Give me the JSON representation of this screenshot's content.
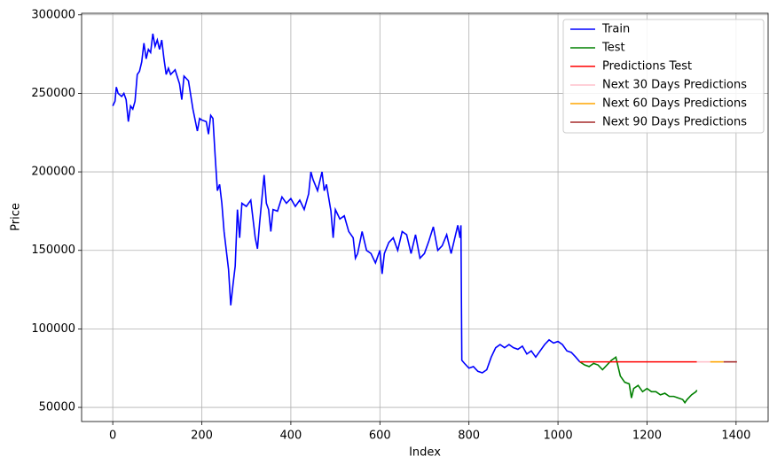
{
  "chart_data": {
    "type": "line",
    "x_label": "Index",
    "y_label": "Price",
    "xlim": [
      -70,
      1472
    ],
    "ylim": [
      41000,
      301000
    ],
    "xticks": [
      0,
      200,
      400,
      600,
      800,
      1000,
      1200,
      1400
    ],
    "yticks": [
      50000,
      100000,
      150000,
      200000,
      250000,
      300000
    ],
    "grid": true,
    "legend": "upper right",
    "series": [
      {
        "name": "Train",
        "color": "#0000ff",
        "x": [
          0,
          5,
          8,
          12,
          20,
          25,
          30,
          35,
          40,
          45,
          50,
          55,
          60,
          65,
          70,
          75,
          80,
          85,
          90,
          95,
          100,
          105,
          110,
          115,
          120,
          125,
          130,
          140,
          150,
          155,
          160,
          170,
          180,
          190,
          195,
          200,
          210,
          215,
          220,
          225,
          230,
          235,
          240,
          245,
          250,
          255,
          260,
          265,
          270,
          275,
          280,
          285,
          290,
          300,
          310,
          320,
          325,
          330,
          340,
          345,
          350,
          355,
          360,
          370,
          380,
          390,
          400,
          410,
          420,
          430,
          440,
          445,
          450,
          460,
          470,
          475,
          480,
          490,
          495,
          500,
          510,
          520,
          530,
          540,
          545,
          550,
          560,
          570,
          580,
          590,
          600,
          605,
          610,
          620,
          630,
          640,
          650,
          660,
          670,
          680,
          690,
          700,
          710,
          720,
          730,
          740,
          750,
          760,
          770,
          775,
          780,
          782,
          784,
          790,
          800,
          810,
          820,
          830,
          840,
          850,
          860,
          870,
          880,
          890,
          900,
          910,
          920,
          930,
          940,
          950,
          960,
          970,
          980,
          990,
          1000,
          1010,
          1020,
          1030,
          1040,
          1049
        ],
        "values": [
          242000,
          245000,
          254000,
          250000,
          248000,
          250000,
          246000,
          232000,
          242000,
          240000,
          245000,
          262000,
          264000,
          270000,
          282000,
          272000,
          278000,
          276000,
          288000,
          280000,
          284000,
          278000,
          284000,
          272000,
          262000,
          266000,
          262000,
          265000,
          256000,
          246000,
          261000,
          258000,
          240000,
          226000,
          234000,
          233000,
          232000,
          224000,
          236000,
          234000,
          210000,
          188000,
          192000,
          180000,
          162000,
          150000,
          138000,
          115000,
          128000,
          140000,
          176000,
          158000,
          180000,
          178000,
          182000,
          158000,
          151000,
          168000,
          198000,
          180000,
          176000,
          162000,
          176000,
          175000,
          184000,
          180000,
          183000,
          178000,
          182000,
          176000,
          186000,
          200000,
          195000,
          188000,
          200000,
          188000,
          192000,
          175000,
          158000,
          176000,
          170000,
          172000,
          162000,
          158000,
          145000,
          148000,
          162000,
          150000,
          148000,
          142000,
          150000,
          135000,
          148000,
          155000,
          158000,
          150000,
          162000,
          160000,
          148000,
          160000,
          145000,
          148000,
          156000,
          165000,
          150000,
          153000,
          160000,
          148000,
          160000,
          166000,
          158000,
          166000,
          80000,
          78000,
          75000,
          76000,
          73000,
          72000,
          74000,
          82000,
          88000,
          90000,
          88000,
          90000,
          88000,
          87000,
          89000,
          84000,
          86000,
          82000,
          86000,
          90000,
          93000,
          91000,
          92000,
          90000,
          86000,
          85000,
          82000,
          79000
        ]
      },
      {
        "name": "Test",
        "color": "#008000",
        "x": [
          1049,
          1060,
          1070,
          1080,
          1090,
          1100,
          1110,
          1120,
          1130,
          1135,
          1140,
          1150,
          1160,
          1165,
          1170,
          1180,
          1190,
          1200,
          1210,
          1220,
          1230,
          1240,
          1250,
          1260,
          1270,
          1280,
          1285,
          1290,
          1300,
          1310,
          1312
        ],
        "values": [
          79000,
          77000,
          76000,
          78000,
          77000,
          74000,
          77000,
          80000,
          82000,
          76000,
          70000,
          66000,
          65000,
          56000,
          62000,
          64000,
          60000,
          62000,
          60000,
          60000,
          58000,
          59000,
          57000,
          57000,
          56000,
          55000,
          53000,
          55000,
          58000,
          60000,
          61000
        ]
      },
      {
        "name": "Predictions Test",
        "color": "#ff0000",
        "x": [
          1049,
          1312
        ],
        "values": [
          79000,
          79000
        ]
      },
      {
        "name": "Next 30 Days Predictions",
        "color": "#ffc0cb",
        "x": [
          1312,
          1342
        ],
        "values": [
          79000,
          79000
        ]
      },
      {
        "name": "Next 60 Days Predictions",
        "color": "#ffa500",
        "x": [
          1342,
          1372
        ],
        "values": [
          79000,
          79000
        ]
      },
      {
        "name": "Next 90 Days Predictions",
        "color": "#a52a2a",
        "x": [
          1372,
          1402
        ],
        "values": [
          79000,
          79000
        ]
      }
    ]
  }
}
